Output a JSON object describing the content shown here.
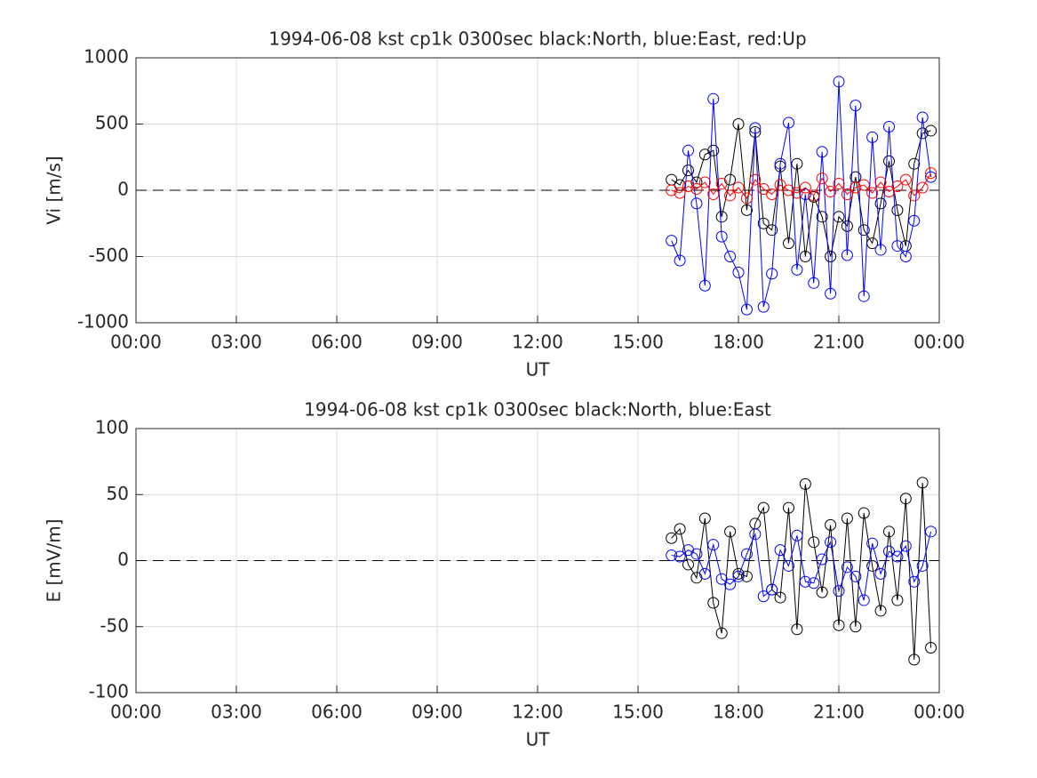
{
  "chart_data": [
    {
      "type": "line",
      "title": "1994-06-08 kst cp1k 0300sec black:North, blue:East, red:Up",
      "xlabel": "UT",
      "ylabel": "Vi [m/s]",
      "x": [
        16.0,
        16.25,
        16.5,
        16.75,
        17.0,
        17.25,
        17.5,
        17.75,
        18.0,
        18.25,
        18.5,
        18.75,
        19.0,
        19.25,
        19.5,
        19.75,
        20.0,
        20.25,
        20.5,
        20.75,
        21.0,
        21.25,
        21.5,
        21.75,
        22.0,
        22.25,
        22.5,
        22.75,
        23.0,
        23.25,
        23.5,
        23.75
      ],
      "series": [
        {
          "color": "#000000",
          "values": [
            80,
            40,
            150,
            60,
            270,
            300,
            -200,
            80,
            500,
            -150,
            440,
            -250,
            -300,
            180,
            -400,
            200,
            -500,
            -50,
            -200,
            -500,
            -200,
            -270,
            100,
            -300,
            -400,
            -100,
            220,
            -150,
            -420,
            200,
            430,
            450
          ]
        },
        {
          "color": "#0000ff",
          "values": [
            -380,
            -530,
            300,
            -100,
            -720,
            690,
            -350,
            -500,
            -620,
            -900,
            470,
            -880,
            -630,
            200,
            510,
            -600,
            -30,
            -700,
            290,
            -780,
            820,
            -490,
            640,
            -800,
            400,
            -450,
            480,
            -420,
            -500,
            -230,
            550,
            100
          ]
        },
        {
          "color": "#ff0000",
          "values": [
            0,
            -20,
            30,
            10,
            60,
            -30,
            50,
            -40,
            20,
            -60,
            80,
            10,
            -30,
            40,
            0,
            -20,
            20,
            -40,
            90,
            -10,
            50,
            -30,
            20,
            40,
            -20,
            60,
            -10,
            30,
            80,
            -40,
            20,
            130
          ]
        }
      ],
      "xlim": [
        0,
        24
      ],
      "xticks": [
        {
          "value": 0,
          "label": "00:00"
        },
        {
          "value": 3,
          "label": "03:00"
        },
        {
          "value": 6,
          "label": "06:00"
        },
        {
          "value": 9,
          "label": "09:00"
        },
        {
          "value": 12,
          "label": "12:00"
        },
        {
          "value": 15,
          "label": "15:00"
        },
        {
          "value": 18,
          "label": "18:00"
        },
        {
          "value": 21,
          "label": "21:00"
        },
        {
          "value": 24,
          "label": "00:00"
        }
      ],
      "ylim": [
        -1000,
        1000
      ],
      "yticks": [
        -1000,
        -500,
        0,
        500,
        1000
      ],
      "grid": true
    },
    {
      "type": "line",
      "title": "1994-06-08 kst cp1k 0300sec black:North, blue:East",
      "xlabel": "UT",
      "ylabel": "E [mV/m]",
      "x": [
        16.0,
        16.25,
        16.5,
        16.75,
        17.0,
        17.25,
        17.5,
        17.75,
        18.0,
        18.25,
        18.5,
        18.75,
        19.0,
        19.25,
        19.5,
        19.75,
        20.0,
        20.25,
        20.5,
        20.75,
        21.0,
        21.25,
        21.5,
        21.75,
        22.0,
        22.25,
        22.5,
        22.75,
        23.0,
        23.25,
        23.5,
        23.75
      ],
      "series": [
        {
          "color": "#000000",
          "values": [
            17,
            24,
            -3,
            -13,
            32,
            -32,
            -55,
            22,
            -10,
            -12,
            28,
            40,
            -22,
            -28,
            40,
            -52,
            58,
            14,
            -24,
            27,
            -49,
            32,
            -50,
            36,
            -4,
            -38,
            22,
            -30,
            47,
            -75,
            59,
            -66
          ]
        },
        {
          "color": "#0000ff",
          "values": [
            4,
            3,
            8,
            5,
            -10,
            12,
            -14,
            -18,
            -12,
            5,
            20,
            -27,
            -22,
            8,
            -4,
            19,
            -16,
            -17,
            1,
            14,
            -23,
            -5,
            -12,
            -30,
            13,
            -10,
            7,
            3,
            11,
            -16,
            -4,
            22
          ]
        }
      ],
      "xlim": [
        0,
        24
      ],
      "xticks": [
        {
          "value": 0,
          "label": "00:00"
        },
        {
          "value": 3,
          "label": "03:00"
        },
        {
          "value": 6,
          "label": "06:00"
        },
        {
          "value": 9,
          "label": "09:00"
        },
        {
          "value": 12,
          "label": "12:00"
        },
        {
          "value": 15,
          "label": "15:00"
        },
        {
          "value": 18,
          "label": "18:00"
        },
        {
          "value": 21,
          "label": "21:00"
        },
        {
          "value": 24,
          "label": "00:00"
        }
      ],
      "ylim": [
        -100,
        100
      ],
      "yticks": [
        -100,
        -50,
        0,
        50,
        100
      ],
      "grid": true
    }
  ]
}
